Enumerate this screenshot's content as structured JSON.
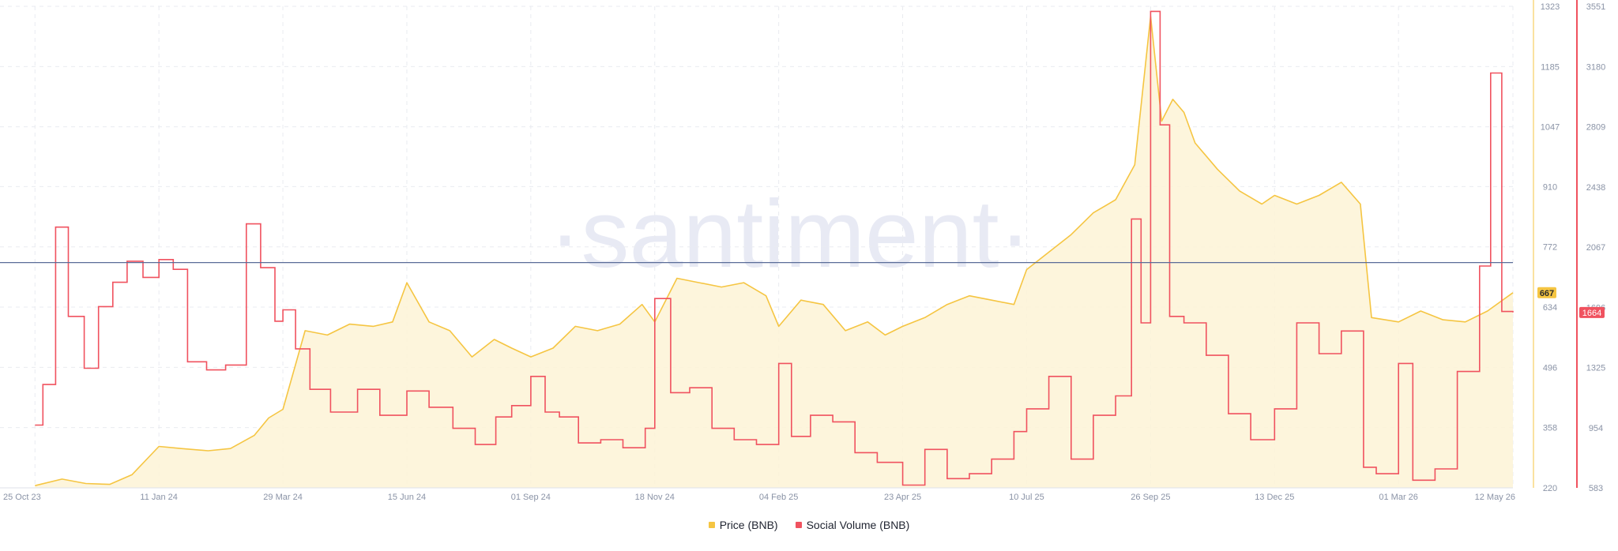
{
  "watermark": "·santiment·",
  "legend": [
    {
      "label": "Price (BNB)",
      "color": "#f5c542"
    },
    {
      "label": "Social Volume (BNB)",
      "color": "#f0525f"
    }
  ],
  "colors": {
    "price_line": "#f5c542",
    "price_fill": "#fdf3d6",
    "social_line": "#f0525f",
    "reference_line": "#5a6c98",
    "grid": "#e9ebf0",
    "axis_text": "#8a93a6"
  },
  "chart_data": {
    "type": "line",
    "title": "",
    "x_tick_labels": [
      "25 Oct 23",
      "11 Jan 24",
      "29 Mar 24",
      "15 Jun 24",
      "01 Sep 24",
      "18 Nov 24",
      "04 Feb 25",
      "23 Apr 25",
      "10 Jul 25",
      "26 Sep 25",
      "13 Dec 25",
      "01 Mar 26",
      "12 May 26"
    ],
    "y_left_label_note": "",
    "y_price_ticks": [
      "1323",
      "1185",
      "1047",
      "910",
      "772",
      "634",
      "496",
      "358",
      "220"
    ],
    "y_social_ticks": [
      "3551",
      "3180",
      "2809",
      "2438",
      "2067",
      "1696",
      "1325",
      "954",
      "583"
    ],
    "price_ylim": [
      220,
      1323
    ],
    "social_ylim": [
      583,
      3551
    ],
    "reference_line_price": 736,
    "current_price_label": "667",
    "current_social_label": "1664",
    "series": [
      {
        "name": "Price (BNB)",
        "axis": "price",
        "x": [
          "25 Oct 23",
          "11 Nov 23",
          "26 Nov 23",
          "11 Dec 23",
          "25 Dec 23",
          "11 Jan 24",
          "25 Jan 24",
          "11 Feb 24",
          "25 Feb 24",
          "11 Mar 24",
          "20 Mar 24",
          "29 Mar 24",
          "12 Apr 24",
          "26 Apr 24",
          "10 May 24",
          "25 May 24",
          "06 Jun 24",
          "15 Jun 24",
          "29 Jun 24",
          "12 Jul 24",
          "26 Jul 24",
          "09 Aug 24",
          "20 Aug 24",
          "01 Sep 24",
          "15 Sep 24",
          "29 Sep 24",
          "13 Oct 24",
          "27 Oct 24",
          "10 Nov 24",
          "18 Nov 24",
          "02 Dec 24",
          "16 Dec 24",
          "30 Dec 24",
          "13 Jan 25",
          "27 Jan 25",
          "04 Feb 25",
          "18 Feb 25",
          "04 Mar 25",
          "18 Mar 25",
          "01 Apr 25",
          "12 Apr 25",
          "23 Apr 25",
          "07 May 25",
          "21 May 25",
          "04 Jun 25",
          "18 Jun 25",
          "02 Jul 25",
          "10 Jul 25",
          "24 Jul 25",
          "07 Aug 25",
          "21 Aug 25",
          "04 Sep 25",
          "16 Sep 25",
          "26 Sep 25",
          "03 Oct 25",
          "10 Oct 25",
          "17 Oct 25",
          "24 Oct 25",
          "07 Nov 25",
          "21 Nov 25",
          "05 Dec 25",
          "13 Dec 25",
          "27 Dec 25",
          "10 Jan 26",
          "24 Jan 26",
          "05 Feb 26",
          "12 Feb 26",
          "01 Mar 26",
          "15 Mar 26",
          "29 Mar 26",
          "12 Apr 26",
          "26 Apr 26",
          "12 May 26"
        ],
        "values": [
          225,
          240,
          230,
          228,
          250,
          315,
          310,
          305,
          310,
          340,
          380,
          400,
          580,
          570,
          595,
          590,
          600,
          690,
          600,
          580,
          520,
          560,
          540,
          520,
          540,
          590,
          580,
          595,
          640,
          600,
          700,
          690,
          680,
          690,
          660,
          590,
          650,
          640,
          580,
          600,
          570,
          590,
          610,
          640,
          660,
          650,
          640,
          720,
          760,
          800,
          850,
          880,
          960,
          1300,
          1060,
          1110,
          1080,
          1010,
          950,
          900,
          870,
          890,
          870,
          890,
          920,
          870,
          610,
          600,
          625,
          605,
          600,
          625,
          667
        ]
      },
      {
        "name": "Social Volume (BNB)",
        "axis": "social",
        "x": [
          "25 Oct 23",
          "30 Oct 23",
          "07 Nov 23",
          "15 Nov 23",
          "25 Nov 23",
          "04 Dec 23",
          "13 Dec 23",
          "22 Dec 23",
          "01 Jan 24",
          "11 Jan 24",
          "20 Jan 24",
          "29 Jan 24",
          "10 Feb 24",
          "22 Feb 24",
          "06 Mar 24",
          "15 Mar 24",
          "24 Mar 24",
          "29 Mar 24",
          "06 Apr 24",
          "15 Apr 24",
          "28 Apr 24",
          "15 May 24",
          "29 May 24",
          "15 Jun 24",
          "29 Jun 24",
          "14 Jul 24",
          "28 Jul 24",
          "10 Aug 24",
          "20 Aug 24",
          "01 Sep 24",
          "10 Sep 24",
          "19 Sep 24",
          "01 Oct 24",
          "15 Oct 24",
          "29 Oct 24",
          "12 Nov 24",
          "18 Nov 24",
          "28 Nov 24",
          "10 Dec 24",
          "24 Dec 24",
          "07 Jan 25",
          "21 Jan 25",
          "04 Feb 25",
          "12 Feb 25",
          "24 Feb 25",
          "10 Mar 25",
          "24 Mar 25",
          "07 Apr 25",
          "23 Apr 25",
          "07 May 25",
          "21 May 25",
          "04 Jun 25",
          "18 Jun 25",
          "02 Jul 25",
          "10 Jul 25",
          "24 Jul 25",
          "07 Aug 25",
          "21 Aug 25",
          "04 Sep 25",
          "14 Sep 25",
          "20 Sep 25",
          "26 Sep 25",
          "02 Oct 25",
          "08 Oct 25",
          "17 Oct 25",
          "31 Oct 25",
          "14 Nov 25",
          "28 Nov 25",
          "13 Dec 25",
          "27 Dec 25",
          "10 Jan 26",
          "24 Jan 26",
          "07 Feb 26",
          "15 Feb 26",
          "01 Mar 26",
          "10 Mar 26",
          "24 Mar 26",
          "07 Apr 26",
          "21 Apr 26",
          "28 Apr 26",
          "05 May 26",
          "12 May 26"
        ],
        "values": [
          970,
          1220,
          2190,
          1640,
          1320,
          1700,
          1850,
          1980,
          1880,
          1990,
          1930,
          1360,
          1310,
          1340,
          2210,
          1940,
          1610,
          1680,
          1440,
          1190,
          1050,
          1190,
          1030,
          1180,
          1080,
          950,
          850,
          1020,
          1090,
          1270,
          1050,
          1020,
          860,
          880,
          830,
          950,
          1750,
          1170,
          1200,
          950,
          880,
          850,
          1350,
          900,
          1030,
          990,
          800,
          740,
          600,
          820,
          640,
          670,
          760,
          930,
          1070,
          1270,
          760,
          1030,
          1150,
          2240,
          1600,
          3520,
          2820,
          1640,
          1600,
          1400,
          1040,
          880,
          1070,
          1600,
          1410,
          1550,
          710,
          670,
          1350,
          630,
          700,
          1300,
          1950,
          3140,
          1670,
          1664
        ]
      }
    ]
  }
}
